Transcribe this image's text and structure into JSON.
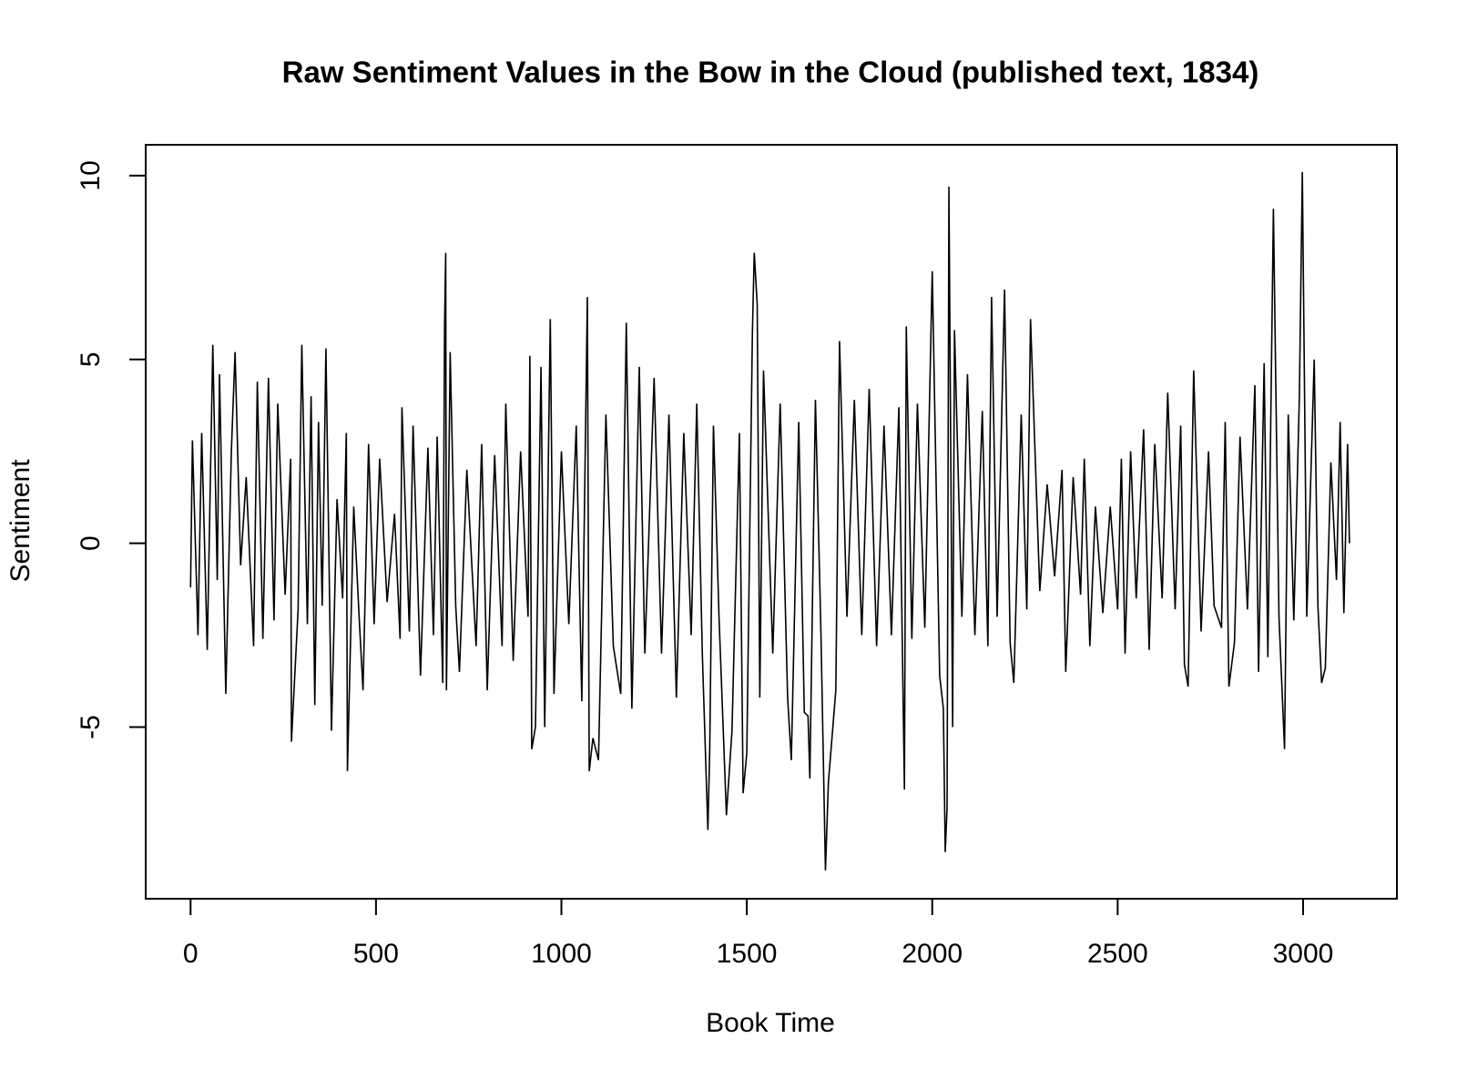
{
  "chart_data": {
    "type": "line",
    "title": "Raw Sentiment Values in the Bow in the Cloud (published text, 1834)",
    "x_label": "Book Time",
    "y_label": "Sentiment",
    "color": "#000000",
    "xlim": [
      -121,
      3253
    ],
    "ylim": [
      -9.67,
      10.84
    ],
    "xticks": [
      0,
      500,
      1000,
      1500,
      2000,
      2500,
      3000
    ],
    "yticks": [
      -5,
      0,
      5,
      10
    ],
    "x": [
      0,
      5,
      20,
      30,
      45,
      60,
      72,
      78,
      95,
      110,
      120,
      135,
      150,
      170,
      180,
      195,
      210,
      225,
      235,
      255,
      270,
      272,
      290,
      300,
      315,
      325,
      335,
      345,
      355,
      365,
      380,
      395,
      410,
      420,
      423,
      440,
      455,
      465,
      480,
      495,
      510,
      530,
      550,
      565,
      570,
      590,
      600,
      620,
      640,
      655,
      665,
      680,
      685,
      688,
      690,
      700,
      715,
      725,
      745,
      770,
      785,
      800,
      820,
      840,
      850,
      870,
      890,
      910,
      915,
      920,
      930,
      945,
      955,
      970,
      980,
      1000,
      1020,
      1040,
      1055,
      1070,
      1075,
      1085,
      1100,
      1120,
      1140,
      1160,
      1175,
      1190,
      1210,
      1225,
      1250,
      1270,
      1290,
      1310,
      1330,
      1350,
      1365,
      1380,
      1395,
      1400,
      1410,
      1425,
      1445,
      1460,
      1480,
      1490,
      1500,
      1515,
      1520,
      1528,
      1535,
      1545,
      1570,
      1590,
      1610,
      1620,
      1640,
      1655,
      1665,
      1670,
      1685,
      1700,
      1712,
      1720,
      1740,
      1750,
      1770,
      1790,
      1810,
      1830,
      1850,
      1870,
      1890,
      1910,
      1925,
      1930,
      1945,
      1960,
      1980,
      2000,
      2020,
      2030,
      2035,
      2040,
      2045,
      2055,
      2060,
      2080,
      2095,
      2115,
      2135,
      2150,
      2160,
      2175,
      2195,
      2210,
      2220,
      2240,
      2255,
      2265,
      2290,
      2310,
      2330,
      2350,
      2360,
      2380,
      2400,
      2410,
      2425,
      2440,
      2460,
      2480,
      2500,
      2510,
      2520,
      2535,
      2550,
      2570,
      2585,
      2600,
      2620,
      2635,
      2655,
      2670,
      2680,
      2690,
      2705,
      2725,
      2745,
      2760,
      2780,
      2790,
      2800,
      2815,
      2830,
      2850,
      2870,
      2880,
      2895,
      2905,
      2920,
      2935,
      2950,
      2960,
      2975,
      2990,
      2998,
      3010,
      3030,
      3040,
      3050,
      3060,
      3075,
      3090,
      3100,
      3110,
      3120,
      3125
    ],
    "values": [
      -1.2,
      2.8,
      -2.5,
      3.0,
      -2.9,
      5.4,
      -1.0,
      4.6,
      -4.1,
      2.5,
      5.2,
      -0.6,
      1.8,
      -2.8,
      4.4,
      -2.6,
      4.5,
      -2.1,
      3.8,
      -1.4,
      2.3,
      -5.4,
      -1.8,
      5.4,
      -2.2,
      4.0,
      -4.4,
      3.3,
      -1.7,
      5.3,
      -5.1,
      1.2,
      -1.5,
      3.0,
      -6.2,
      1.0,
      -2.1,
      -4.0,
      2.7,
      -2.2,
      2.3,
      -1.6,
      0.8,
      -2.6,
      3.7,
      -2.4,
      3.2,
      -3.6,
      2.6,
      -2.5,
      2.9,
      -3.8,
      6.0,
      7.9,
      -4.0,
      5.2,
      -1.7,
      -3.5,
      2.0,
      -2.8,
      2.7,
      -4.0,
      2.4,
      -2.8,
      3.8,
      -3.2,
      2.5,
      -2.0,
      5.1,
      -5.6,
      -5.0,
      4.8,
      -5.0,
      6.1,
      -4.1,
      2.5,
      -2.2,
      3.2,
      -4.3,
      6.7,
      -6.2,
      -5.3,
      -5.9,
      3.5,
      -2.8,
      -4.1,
      6.0,
      -4.5,
      4.8,
      -3.0,
      4.5,
      -3.0,
      3.5,
      -4.2,
      3.0,
      -2.5,
      3.8,
      -3.0,
      -7.8,
      -5.6,
      3.2,
      -2.0,
      -7.4,
      -5.1,
      3.0,
      -6.8,
      -5.7,
      5.7,
      7.9,
      6.5,
      -4.2,
      4.7,
      -3.0,
      3.8,
      -4.2,
      -5.9,
      3.3,
      -4.6,
      -4.7,
      -6.4,
      3.9,
      -2.5,
      -8.9,
      -6.5,
      -4.0,
      5.5,
      -2.0,
      3.9,
      -2.5,
      4.2,
      -2.8,
      3.2,
      -2.5,
      3.7,
      -6.7,
      5.9,
      -2.6,
      3.8,
      -2.3,
      7.4,
      -3.6,
      -4.5,
      -8.4,
      -7.2,
      9.7,
      -5.0,
      5.8,
      -2.0,
      4.6,
      -2.5,
      3.6,
      -2.8,
      6.7,
      -2.0,
      6.9,
      -2.7,
      -3.8,
      3.5,
      -1.8,
      6.1,
      -1.3,
      1.6,
      -0.9,
      2.0,
      -3.5,
      1.8,
      -1.4,
      2.3,
      -2.8,
      1.0,
      -1.9,
      1.0,
      -1.8,
      2.3,
      -3.0,
      2.5,
      -1.5,
      3.1,
      -2.9,
      2.7,
      -1.5,
      4.1,
      -1.8,
      3.2,
      -3.3,
      -3.9,
      4.7,
      -2.4,
      2.5,
      -1.7,
      -2.3,
      3.3,
      -3.9,
      -2.7,
      2.9,
      -1.8,
      4.3,
      -3.5,
      4.9,
      -3.1,
      9.1,
      -2.0,
      -5.6,
      3.5,
      -2.1,
      4.0,
      10.1,
      -2.0,
      5.0,
      -1.7,
      -3.8,
      -3.4,
      2.2,
      -1.0,
      3.3,
      -1.9,
      2.7,
      0
    ]
  }
}
